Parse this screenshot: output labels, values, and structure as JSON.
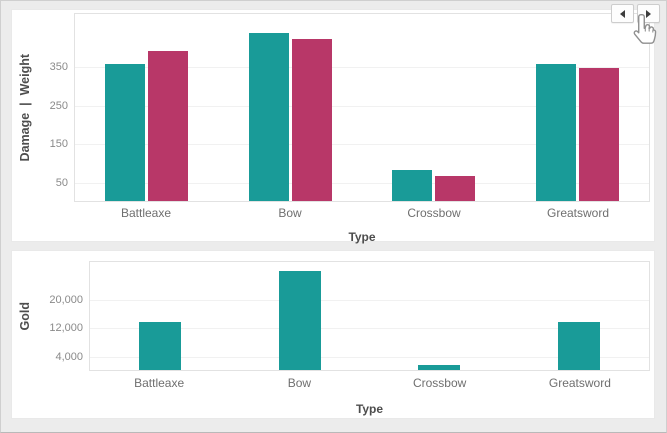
{
  "colors": {
    "page_background": "#ececec",
    "card_background": "#ffffff",
    "teal": "#199b98",
    "magenta": "#b83768",
    "axis_title": "#4d4d4d",
    "tick_label": "#8a8a8a"
  },
  "carousel": {
    "prev_icon": "left-triangle-icon",
    "next_icon": "right-triangle-icon"
  },
  "cursor": "hand-pointer",
  "chart_data": [
    {
      "type": "bar",
      "title": "",
      "categories": [
        "Battleaxe",
        "Bow",
        "Crossbow",
        "Greatsword"
      ],
      "series": [
        {
          "name": "Damage",
          "color": "#199b98",
          "values": [
            355,
            435,
            80,
            355
          ]
        },
        {
          "name": "Weight",
          "color": "#b83768",
          "values": [
            390,
            420,
            65,
            345
          ]
        }
      ],
      "xlabel": "Type",
      "ylabel": "Damage  |  Weight",
      "yticks": [
        50,
        150,
        250,
        350
      ],
      "ylim": [
        0,
        490
      ],
      "grid": true,
      "legend": "none"
    },
    {
      "type": "bar",
      "title": "",
      "categories": [
        "Battleaxe",
        "Bow",
        "Crossbow",
        "Greatsword"
      ],
      "series": [
        {
          "name": "Gold",
          "color": "#199b98",
          "values": [
            13500,
            27800,
            1300,
            13400
          ]
        }
      ],
      "xlabel": "Type",
      "ylabel": "Gold",
      "yticks": [
        4000,
        12000,
        20000
      ],
      "ylim": [
        0,
        31000
      ],
      "grid": true,
      "legend": "none"
    }
  ]
}
